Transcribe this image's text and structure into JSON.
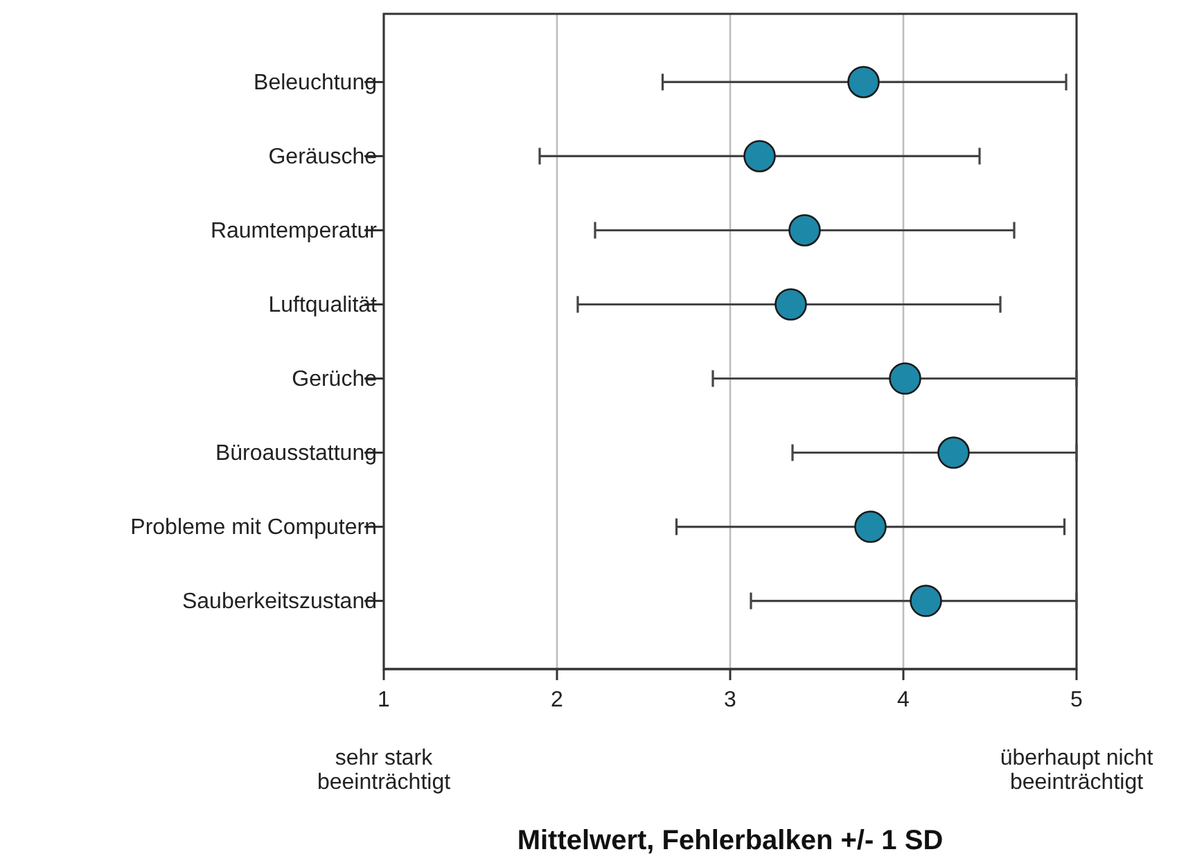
{
  "chart_data": {
    "type": "scatter",
    "orientation": "horizontal",
    "xlabel": "Mittelwert, Fehlerbalken +/- 1 SD",
    "categories": [
      "Beleuchtung",
      "Geräusche",
      "Raumtemperatur",
      "Luftqualität",
      "Gerüche",
      "Büroausstattung",
      "Probleme mit Computern",
      "Sauberkeitszustand"
    ],
    "series": [
      {
        "color": "#1e88a8",
        "values": [
          3.77,
          3.17,
          3.43,
          3.35,
          4.01,
          4.29,
          3.81,
          4.13
        ],
        "errors": [
          [
            2.61,
            4.94
          ],
          [
            1.9,
            4.44
          ],
          [
            2.22,
            4.64
          ],
          [
            2.12,
            4.56
          ],
          [
            2.9,
            5
          ],
          [
            3.36,
            5
          ],
          [
            2.69,
            4.93
          ],
          [
            3.12,
            5
          ]
        ]
      }
    ],
    "xlim": [
      1,
      5
    ],
    "xticks": [
      1,
      2,
      3,
      4,
      5
    ],
    "grid": "x",
    "marker": "circle",
    "annotations": [
      "sehr stark\nbeeinträchtigt",
      "überhaupt nicht\nbeeinträchtigt"
    ]
  }
}
